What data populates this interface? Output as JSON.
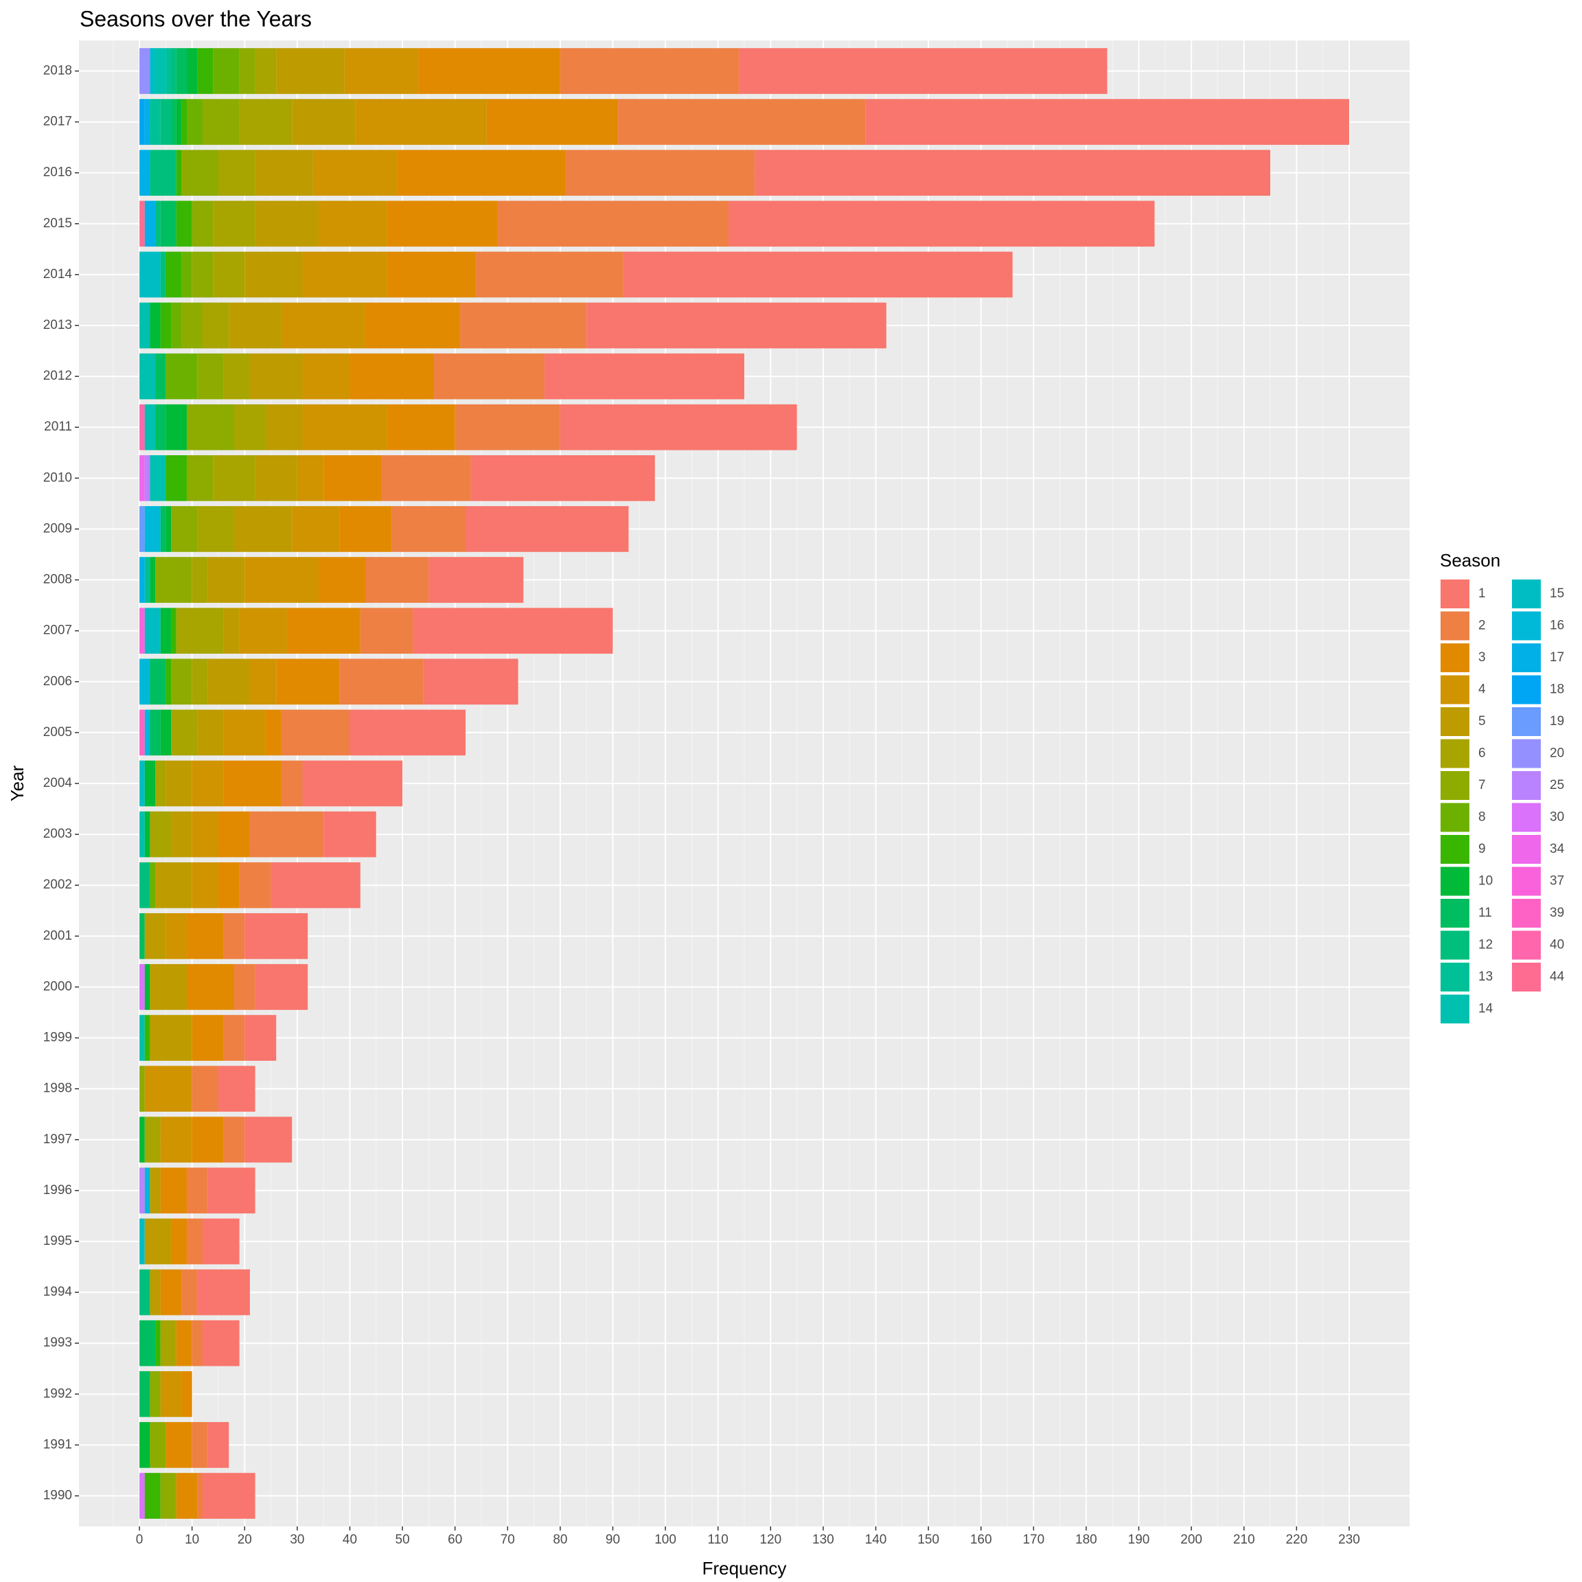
{
  "chart_data": {
    "type": "stacked-barh",
    "title": "Seasons over the Years",
    "x_label": "Frequency",
    "y_label": "Year",
    "legend_title": "Season",
    "categories": [
      "1990",
      "1991",
      "1992",
      "1993",
      "1994",
      "1995",
      "1996",
      "1997",
      "1998",
      "1999",
      "2000",
      "2001",
      "2002",
      "2003",
      "2004",
      "2005",
      "2006",
      "2007",
      "2008",
      "2009",
      "2010",
      "2011",
      "2012",
      "2013",
      "2014",
      "2015",
      "2016",
      "2017",
      "2018"
    ],
    "xlim": [
      -11.5,
      241.5
    ],
    "xticks": [
      0,
      10,
      20,
      30,
      40,
      50,
      60,
      70,
      80,
      90,
      100,
      110,
      120,
      130,
      140,
      150,
      160,
      170,
      180,
      190,
      200,
      210,
      220,
      230
    ],
    "grid": true,
    "legend": "right",
    "series": [
      {
        "name": "1",
        "color": "#F8766D",
        "values": [
          10,
          4,
          0,
          7,
          10,
          7,
          9,
          9,
          7,
          6,
          10,
          12,
          17,
          10,
          19,
          22,
          18,
          38,
          18,
          31,
          35,
          45,
          38,
          57,
          74,
          81,
          98,
          92,
          70
        ]
      },
      {
        "name": "2",
        "color": "#EE8044",
        "values": [
          1,
          3,
          0,
          2,
          3,
          3,
          4,
          4,
          5,
          4,
          4,
          4,
          6,
          14,
          4,
          13,
          16,
          10,
          12,
          14,
          17,
          20,
          21,
          24,
          28,
          44,
          36,
          47,
          34
        ]
      },
      {
        "name": "3",
        "color": "#E18A00",
        "values": [
          4,
          5,
          2,
          3,
          4,
          3,
          5,
          6,
          0,
          6,
          9,
          7,
          4,
          6,
          11,
          3,
          12,
          14,
          9,
          10,
          11,
          13,
          16,
          18,
          17,
          21,
          32,
          25,
          27
        ]
      },
      {
        "name": "4",
        "color": "#D09400",
        "values": [
          0,
          0,
          4,
          0,
          0,
          0,
          0,
          6,
          9,
          0,
          0,
          4,
          5,
          5,
          6,
          8,
          5,
          9,
          14,
          9,
          5,
          16,
          9,
          16,
          16,
          13,
          16,
          25,
          14
        ]
      },
      {
        "name": "5",
        "color": "#BE9C00",
        "values": [
          0,
          0,
          0,
          0,
          2,
          5,
          2,
          0,
          0,
          8,
          7,
          4,
          7,
          4,
          5,
          5,
          8,
          3,
          7,
          11,
          8,
          7,
          10,
          10,
          11,
          12,
          11,
          12,
          13
        ]
      },
      {
        "name": "6",
        "color": "#A8A400",
        "values": [
          0,
          0,
          0,
          3,
          0,
          0,
          0,
          3,
          0,
          0,
          0,
          0,
          0,
          4,
          2,
          5,
          3,
          9,
          3,
          7,
          8,
          6,
          5,
          5,
          6,
          8,
          7,
          10,
          4
        ]
      },
      {
        "name": "7",
        "color": "#8EAB00",
        "values": [
          3,
          3,
          2,
          0,
          0,
          0,
          0,
          0,
          1,
          0,
          0,
          0,
          0,
          0,
          0,
          0,
          4,
          0,
          7,
          5,
          5,
          9,
          5,
          4,
          4,
          4,
          7,
          7,
          3
        ]
      },
      {
        "name": "8",
        "color": "#6DB100",
        "values": [
          0,
          0,
          0,
          0,
          0,
          0,
          0,
          0,
          0,
          0,
          0,
          0,
          1,
          0,
          0,
          0,
          0,
          0,
          0,
          0,
          0,
          0,
          6,
          2,
          2,
          0,
          0,
          3,
          5
        ]
      },
      {
        "name": "9",
        "color": "#39B600",
        "values": [
          3,
          0,
          0,
          1,
          0,
          0,
          0,
          0,
          0,
          1,
          0,
          0,
          0,
          0,
          0,
          0,
          1,
          1,
          0,
          0,
          4,
          0,
          0,
          2,
          3,
          3,
          1,
          1,
          3
        ]
      },
      {
        "name": "10",
        "color": "#00BA38",
        "values": [
          0,
          2,
          0,
          0,
          0,
          0,
          0,
          1,
          0,
          0,
          1,
          0,
          0,
          1,
          2,
          2,
          0,
          2,
          1,
          1,
          0,
          4,
          0,
          2,
          0,
          0,
          0,
          1,
          2
        ]
      },
      {
        "name": "11",
        "color": "#00BD5F",
        "values": [
          0,
          0,
          2,
          3,
          0,
          0,
          0,
          0,
          0,
          0,
          0,
          1,
          0,
          0,
          0,
          2,
          3,
          0,
          0,
          1,
          0,
          2,
          2,
          0,
          0,
          3,
          0,
          1,
          2
        ]
      },
      {
        "name": "12",
        "color": "#00BF7D",
        "values": [
          0,
          0,
          0,
          0,
          2,
          0,
          0,
          0,
          0,
          0,
          0,
          0,
          2,
          0,
          0,
          0,
          0,
          0,
          0,
          0,
          0,
          0,
          0,
          0,
          1,
          1,
          5,
          2,
          1
        ]
      },
      {
        "name": "13",
        "color": "#00C097",
        "values": [
          0,
          0,
          0,
          0,
          0,
          0,
          0,
          0,
          0,
          0,
          0,
          0,
          0,
          0,
          0,
          0,
          0,
          0,
          1,
          0,
          0,
          0,
          0,
          0,
          0,
          0,
          0,
          2,
          1
        ]
      },
      {
        "name": "14",
        "color": "#00C0AF",
        "values": [
          0,
          0,
          0,
          0,
          0,
          0,
          0,
          0,
          0,
          1,
          0,
          0,
          0,
          1,
          0,
          0,
          0,
          0,
          0,
          0,
          3,
          2,
          3,
          2,
          0,
          0,
          0,
          0,
          2
        ]
      },
      {
        "name": "15",
        "color": "#00BDC4",
        "values": [
          0,
          0,
          0,
          0,
          0,
          1,
          0,
          0,
          0,
          0,
          0,
          0,
          0,
          0,
          1,
          0,
          0,
          3,
          0,
          0,
          0,
          0,
          0,
          0,
          4,
          0,
          0,
          0,
          1
        ]
      },
      {
        "name": "16",
        "color": "#00B8D7",
        "values": [
          0,
          0,
          0,
          0,
          0,
          0,
          1,
          0,
          0,
          0,
          0,
          0,
          0,
          0,
          0,
          1,
          2,
          0,
          0,
          3,
          0,
          0,
          0,
          0,
          0,
          0,
          0,
          0,
          0
        ]
      },
      {
        "name": "17",
        "color": "#00B0E7",
        "values": [
          0,
          0,
          0,
          0,
          0,
          0,
          0,
          0,
          0,
          0,
          0,
          0,
          0,
          0,
          0,
          0,
          0,
          0,
          1,
          0,
          0,
          0,
          0,
          0,
          0,
          2,
          2,
          1,
          0
        ]
      },
      {
        "name": "18",
        "color": "#00A5F4",
        "values": [
          0,
          0,
          0,
          0,
          0,
          0,
          0,
          0,
          0,
          0,
          0,
          0,
          0,
          0,
          0,
          0,
          0,
          0,
          0,
          0,
          0,
          0,
          0,
          0,
          0,
          0,
          0,
          1,
          0
        ]
      },
      {
        "name": "19",
        "color": "#6A9BFF",
        "values": [
          0,
          0,
          0,
          0,
          0,
          0,
          0,
          0,
          0,
          0,
          0,
          0,
          0,
          0,
          0,
          0,
          0,
          0,
          0,
          1,
          0,
          0,
          0,
          0,
          0,
          0,
          0,
          0,
          0
        ]
      },
      {
        "name": "20",
        "color": "#9590FF",
        "values": [
          0,
          0,
          0,
          0,
          0,
          0,
          0,
          0,
          0,
          0,
          0,
          0,
          0,
          0,
          0,
          0,
          0,
          0,
          0,
          0,
          0,
          0,
          0,
          0,
          0,
          0,
          0,
          0,
          2
        ]
      },
      {
        "name": "25",
        "color": "#B983FF",
        "values": [
          0,
          0,
          0,
          0,
          0,
          0,
          1,
          0,
          0,
          0,
          0,
          0,
          0,
          0,
          0,
          0,
          0,
          0,
          0,
          0,
          1,
          0,
          0,
          0,
          0,
          0,
          0,
          0,
          0
        ]
      },
      {
        "name": "30",
        "color": "#DB72FB",
        "values": [
          1,
          0,
          0,
          0,
          0,
          0,
          0,
          0,
          0,
          0,
          1,
          0,
          0,
          0,
          0,
          0,
          0,
          0,
          0,
          0,
          0,
          0,
          0,
          0,
          0,
          0,
          0,
          0,
          0
        ]
      },
      {
        "name": "34",
        "color": "#EF67EB",
        "values": [
          0,
          0,
          0,
          0,
          0,
          0,
          0,
          0,
          0,
          0,
          0,
          0,
          0,
          0,
          0,
          0,
          0,
          0,
          0,
          0,
          1,
          0,
          0,
          0,
          0,
          0,
          0,
          0,
          0
        ]
      },
      {
        "name": "37",
        "color": "#FA62DB",
        "values": [
          0,
          0,
          0,
          0,
          0,
          0,
          0,
          0,
          0,
          0,
          0,
          0,
          0,
          0,
          0,
          0,
          0,
          1,
          0,
          0,
          0,
          0,
          0,
          0,
          0,
          0,
          0,
          0,
          0
        ]
      },
      {
        "name": "39",
        "color": "#FF62C5",
        "values": [
          0,
          0,
          0,
          0,
          0,
          0,
          0,
          0,
          0,
          0,
          0,
          0,
          0,
          0,
          0,
          1,
          0,
          0,
          0,
          0,
          0,
          0,
          0,
          0,
          0,
          0,
          0,
          0,
          0
        ]
      },
      {
        "name": "40",
        "color": "#FF66AC",
        "values": [
          0,
          0,
          0,
          0,
          0,
          0,
          0,
          0,
          0,
          0,
          0,
          0,
          0,
          0,
          0,
          0,
          0,
          0,
          0,
          0,
          0,
          1,
          0,
          0,
          0,
          0,
          0,
          0,
          0
        ]
      },
      {
        "name": "44",
        "color": "#FF6C91",
        "values": [
          0,
          0,
          0,
          0,
          0,
          0,
          0,
          0,
          0,
          0,
          0,
          0,
          0,
          0,
          0,
          0,
          0,
          0,
          0,
          0,
          0,
          0,
          0,
          0,
          0,
          1,
          0,
          0,
          0
        ]
      }
    ]
  }
}
